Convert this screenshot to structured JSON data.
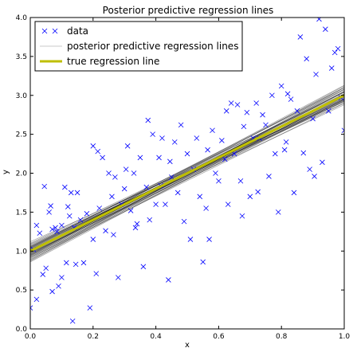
{
  "chart_data": {
    "type": "scatter",
    "title": "Posterior predictive regression lines",
    "xlabel": "x",
    "ylabel": "y",
    "xlim": [
      0.0,
      1.0
    ],
    "ylim": [
      0.0,
      4.0
    ],
    "xticks": [
      0.0,
      0.2,
      0.4,
      0.6,
      0.8,
      1.0
    ],
    "xtick_labels": [
      "0.0",
      "0.2",
      "0.4",
      "0.6",
      "0.8",
      "1.0"
    ],
    "yticks": [
      0.0,
      0.5,
      1.0,
      1.5,
      2.0,
      2.5,
      3.0,
      3.5,
      4.0
    ],
    "ytick_labels": [
      "0.0",
      "0.5",
      "1.0",
      "1.5",
      "2.0",
      "2.5",
      "3.0",
      "3.5",
      "4.0"
    ],
    "grid": false,
    "legend_position": "top-left",
    "legend": [
      {
        "label": "data",
        "marker": "x",
        "color": "#0000ff"
      },
      {
        "label": "posterior predictive regression lines",
        "marker": "line",
        "color": "#c8c8c8"
      },
      {
        "label": "true regression line",
        "marker": "thick-line",
        "color": "#bfbf00"
      }
    ],
    "series": [
      {
        "type": "scatter",
        "marker": "x",
        "color": "#0000ff",
        "points": [
          [
            0.0,
            0.27
          ],
          [
            0.01,
            1.02
          ],
          [
            0.02,
            1.33
          ],
          [
            0.02,
            0.38
          ],
          [
            0.03,
            1.23
          ],
          [
            0.04,
            0.7
          ],
          [
            0.045,
            1.83
          ],
          [
            0.05,
            0.78
          ],
          [
            0.06,
            1.5
          ],
          [
            0.065,
            1.58
          ],
          [
            0.07,
            1.28
          ],
          [
            0.07,
            0.48
          ],
          [
            0.08,
            1.3
          ],
          [
            0.085,
            1.25
          ],
          [
            0.09,
            0.55
          ],
          [
            0.1,
            1.33
          ],
          [
            0.1,
            0.66
          ],
          [
            0.11,
            1.82
          ],
          [
            0.115,
            0.85
          ],
          [
            0.12,
            1.57
          ],
          [
            0.125,
            1.45
          ],
          [
            0.13,
            1.75
          ],
          [
            0.135,
            0.1
          ],
          [
            0.14,
            1.3
          ],
          [
            0.145,
            0.83
          ],
          [
            0.15,
            1.75
          ],
          [
            0.16,
            1.4
          ],
          [
            0.17,
            0.85
          ],
          [
            0.18,
            1.48
          ],
          [
            0.19,
            0.27
          ],
          [
            0.2,
            2.35
          ],
          [
            0.2,
            1.15
          ],
          [
            0.21,
            0.71
          ],
          [
            0.215,
            2.28
          ],
          [
            0.22,
            1.55
          ],
          [
            0.23,
            2.2
          ],
          [
            0.24,
            1.26
          ],
          [
            0.25,
            2.0
          ],
          [
            0.26,
            1.7
          ],
          [
            0.265,
            1.21
          ],
          [
            0.27,
            1.95
          ],
          [
            0.28,
            0.66
          ],
          [
            0.29,
            1.6
          ],
          [
            0.3,
            1.8
          ],
          [
            0.305,
            2.05
          ],
          [
            0.31,
            2.35
          ],
          [
            0.32,
            1.52
          ],
          [
            0.33,
            2.0
          ],
          [
            0.335,
            1.3
          ],
          [
            0.34,
            1.35
          ],
          [
            0.35,
            2.2
          ],
          [
            0.36,
            0.8
          ],
          [
            0.37,
            1.82
          ],
          [
            0.375,
            2.68
          ],
          [
            0.38,
            1.4
          ],
          [
            0.39,
            2.5
          ],
          [
            0.4,
            1.6
          ],
          [
            0.41,
            2.2
          ],
          [
            0.415,
            1.84
          ],
          [
            0.42,
            2.45
          ],
          [
            0.43,
            1.6
          ],
          [
            0.44,
            0.63
          ],
          [
            0.445,
            2.15
          ],
          [
            0.45,
            1.95
          ],
          [
            0.46,
            2.4
          ],
          [
            0.47,
            1.75
          ],
          [
            0.48,
            2.62
          ],
          [
            0.49,
            1.38
          ],
          [
            0.5,
            2.25
          ],
          [
            0.51,
            1.15
          ],
          [
            0.52,
            2.05
          ],
          [
            0.53,
            2.45
          ],
          [
            0.54,
            1.7
          ],
          [
            0.55,
            0.86
          ],
          [
            0.56,
            1.55
          ],
          [
            0.565,
            2.3
          ],
          [
            0.57,
            1.15
          ],
          [
            0.58,
            2.55
          ],
          [
            0.59,
            2.0
          ],
          [
            0.6,
            1.9
          ],
          [
            0.61,
            2.42
          ],
          [
            0.62,
            2.18
          ],
          [
            0.625,
            2.8
          ],
          [
            0.63,
            1.6
          ],
          [
            0.64,
            2.9
          ],
          [
            0.65,
            2.25
          ],
          [
            0.66,
            2.88
          ],
          [
            0.67,
            1.9
          ],
          [
            0.675,
            1.45
          ],
          [
            0.68,
            2.6
          ],
          [
            0.69,
            2.78
          ],
          [
            0.7,
            1.7
          ],
          [
            0.71,
            2.45
          ],
          [
            0.72,
            2.9
          ],
          [
            0.725,
            1.76
          ],
          [
            0.73,
            2.45
          ],
          [
            0.74,
            2.75
          ],
          [
            0.75,
            2.62
          ],
          [
            0.76,
            1.96
          ],
          [
            0.77,
            3.0
          ],
          [
            0.78,
            2.25
          ],
          [
            0.79,
            1.5
          ],
          [
            0.8,
            3.12
          ],
          [
            0.81,
            2.3
          ],
          [
            0.815,
            2.4
          ],
          [
            0.82,
            3.02
          ],
          [
            0.83,
            2.95
          ],
          [
            0.84,
            1.75
          ],
          [
            0.85,
            2.8
          ],
          [
            0.86,
            3.75
          ],
          [
            0.87,
            2.26
          ],
          [
            0.88,
            3.47
          ],
          [
            0.89,
            2.05
          ],
          [
            0.9,
            2.7
          ],
          [
            0.905,
            1.96
          ],
          [
            0.91,
            3.27
          ],
          [
            0.92,
            3.98
          ],
          [
            0.93,
            2.14
          ],
          [
            0.94,
            3.85
          ],
          [
            0.95,
            2.8
          ],
          [
            0.96,
            3.35
          ],
          [
            0.97,
            3.55
          ],
          [
            0.98,
            3.6
          ],
          [
            0.99,
            2.97
          ],
          [
            1.0,
            2.55
          ]
        ]
      },
      {
        "type": "line_bundle",
        "color": "#000000",
        "opacity": 0.35,
        "lines": [
          [
            0.92,
            2.98
          ],
          [
            0.95,
            3.0
          ],
          [
            0.98,
            2.99
          ],
          [
            1.0,
            3.0
          ],
          [
            1.02,
            3.01
          ],
          [
            1.04,
            2.98
          ],
          [
            0.9,
            3.08
          ],
          [
            0.96,
            3.05
          ],
          [
            1.06,
            2.95
          ],
          [
            1.08,
            2.9
          ],
          [
            0.88,
            3.1
          ],
          [
            0.99,
            3.04
          ],
          [
            1.03,
            3.05
          ],
          [
            0.94,
            2.95
          ],
          [
            1.05,
            3.08
          ],
          [
            0.97,
            2.93
          ],
          [
            1.01,
            2.96
          ],
          [
            0.93,
            3.02
          ],
          [
            1.07,
            3.0
          ],
          [
            0.91,
            2.9
          ],
          [
            1.1,
            3.02
          ],
          [
            0.86,
            3.0
          ],
          [
            1.0,
            3.1
          ],
          [
            0.95,
            3.12
          ],
          [
            1.04,
            3.1
          ],
          [
            0.98,
            2.88
          ],
          [
            1.12,
            2.92
          ],
          [
            0.89,
            2.95
          ],
          [
            1.02,
            2.92
          ],
          [
            0.96,
            2.97
          ],
          [
            1.0,
            2.94
          ],
          [
            0.94,
            3.07
          ],
          [
            1.06,
            3.04
          ],
          [
            0.92,
            2.93
          ],
          [
            1.09,
            2.96
          ],
          [
            0.87,
            3.05
          ],
          [
            0.99,
            3.13
          ],
          [
            1.03,
            2.99
          ],
          [
            0.97,
            3.01
          ],
          [
            1.05,
            2.94
          ]
        ]
      },
      {
        "type": "line",
        "name": "true regression line",
        "color": "#bfbf00",
        "points": [
          [
            0.0,
            1.0
          ],
          [
            1.0,
            3.0
          ]
        ]
      }
    ]
  }
}
